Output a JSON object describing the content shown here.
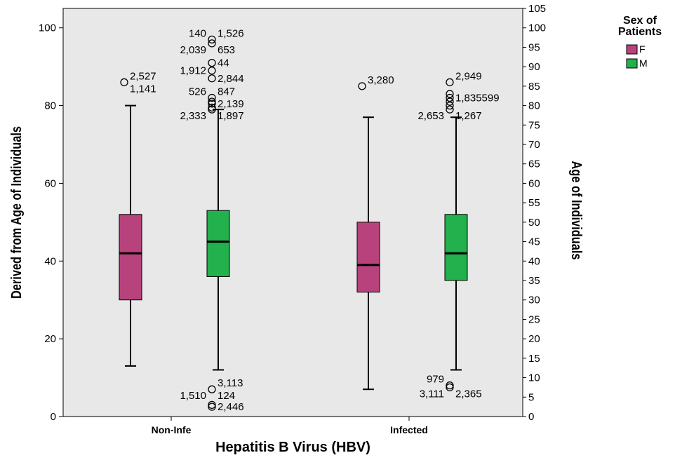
{
  "chart_data": {
    "type": "boxplot",
    "title": "",
    "xlabel": "Hepatitis B Virus (HBV)",
    "ylabel": "Derived from Age of Individuals",
    "ylabel_right": "Age of Individuals",
    "ylim": [
      0,
      105
    ],
    "yticks_left": [
      "0",
      "20",
      "40",
      "60",
      "80",
      "100"
    ],
    "yticks_right": [
      "0",
      "5",
      "10",
      "15",
      "20",
      "25",
      "30",
      "35",
      "40",
      "45",
      "50",
      "55",
      "60",
      "65",
      "70",
      "75",
      "80",
      "85",
      "90",
      "95",
      "100",
      "105"
    ],
    "categories": [
      "Non-Infe",
      "Infected"
    ],
    "grid": false,
    "plot_background": "#e8e8e8",
    "legend": {
      "title_line1": "Sex of",
      "title_line2": "Patients",
      "placement": "top-right outside",
      "entries": [
        {
          "name": "F",
          "color": "#b8437c"
        },
        {
          "name": "M",
          "color": "#22b14c"
        }
      ]
    },
    "series": [
      {
        "name": "F",
        "color": "#b8437c",
        "boxes": [
          {
            "category": "Non-Infe",
            "whisker_low": 13,
            "q1": 30,
            "median": 42,
            "q3": 52,
            "whisker_high": 80,
            "outliers": [
              {
                "value": 86,
                "labels": [
                  {
                    "text": "2,527",
                    "side": "upper-right"
                  },
                  {
                    "text": "1,141",
                    "side": "lower-right"
                  }
                ]
              }
            ]
          },
          {
            "category": "Infected",
            "whisker_low": 7,
            "q1": 32,
            "median": 39,
            "q3": 50,
            "whisker_high": 77,
            "outliers": [
              {
                "value": 85,
                "labels": [
                  {
                    "text": "3,280",
                    "side": "upper-right"
                  }
                ]
              }
            ]
          }
        ]
      },
      {
        "name": "M",
        "color": "#22b14c",
        "boxes": [
          {
            "category": "Non-Infe",
            "whisker_low": 12,
            "q1": 36,
            "median": 45,
            "q3": 53,
            "whisker_high": 79,
            "outliers": [
              {
                "value": 97,
                "labels": [
                  {
                    "text": "140",
                    "side": "upper-left"
                  },
                  {
                    "text": "1,526",
                    "side": "upper-right"
                  }
                ]
              },
              {
                "value": 96,
                "labels": [
                  {
                    "text": "2,039",
                    "side": "lower-left"
                  },
                  {
                    "text": "653",
                    "side": "lower-right"
                  }
                ]
              },
              {
                "value": 91,
                "labels": [
                  {
                    "text": "44",
                    "side": "right"
                  }
                ]
              },
              {
                "value": 89,
                "labels": [
                  {
                    "text": "1,912",
                    "side": "left"
                  }
                ]
              },
              {
                "value": 87,
                "labels": [
                  {
                    "text": "2,844",
                    "side": "right"
                  }
                ]
              },
              {
                "value": 82,
                "labels": [
                  {
                    "text": "526",
                    "side": "upper-left"
                  },
                  {
                    "text": "847",
                    "side": "upper-right"
                  }
                ]
              },
              {
                "value": 81,
                "labels": []
              },
              {
                "value": 80.5,
                "labels": [
                  {
                    "text": "2,139",
                    "side": "right"
                  }
                ]
              },
              {
                "value": 79.5,
                "labels": []
              },
              {
                "value": 79,
                "labels": [
                  {
                    "text": "2,333",
                    "side": "lower-left"
                  },
                  {
                    "text": "1,897",
                    "side": "lower-right"
                  }
                ]
              },
              {
                "value": 7,
                "labels": [
                  {
                    "text": "3,113",
                    "side": "upper-right"
                  },
                  {
                    "text": "1,510",
                    "side": "lower-left"
                  },
                  {
                    "text": "124",
                    "side": "lower-right"
                  }
                ]
              },
              {
                "value": 3,
                "labels": []
              },
              {
                "value": 2.5,
                "labels": [
                  {
                    "text": "2,446",
                    "side": "right"
                  }
                ]
              }
            ]
          },
          {
            "category": "Infected",
            "whisker_low": 12,
            "q1": 35,
            "median": 42,
            "q3": 52,
            "whisker_high": 77,
            "outliers": [
              {
                "value": 86,
                "labels": [
                  {
                    "text": "2,949",
                    "side": "upper-right"
                  }
                ]
              },
              {
                "value": 83,
                "labels": []
              },
              {
                "value": 82,
                "labels": [
                  {
                    "text": "1,835599",
                    "side": "right"
                  }
                ]
              },
              {
                "value": 81,
                "labels": []
              },
              {
                "value": 80,
                "labels": []
              },
              {
                "value": 79,
                "labels": [
                  {
                    "text": "2,653",
                    "side": "lower-left"
                  },
                  {
                    "text": "1,267",
                    "side": "lower-right"
                  }
                ]
              },
              {
                "value": 8,
                "labels": [
                  {
                    "text": "979",
                    "side": "upper-left"
                  }
                ]
              },
              {
                "value": 7.5,
                "labels": [
                  {
                    "text": "3,111",
                    "side": "lower-left"
                  },
                  {
                    "text": "2,365",
                    "side": "lower-right"
                  }
                ]
              }
            ]
          }
        ]
      }
    ]
  }
}
